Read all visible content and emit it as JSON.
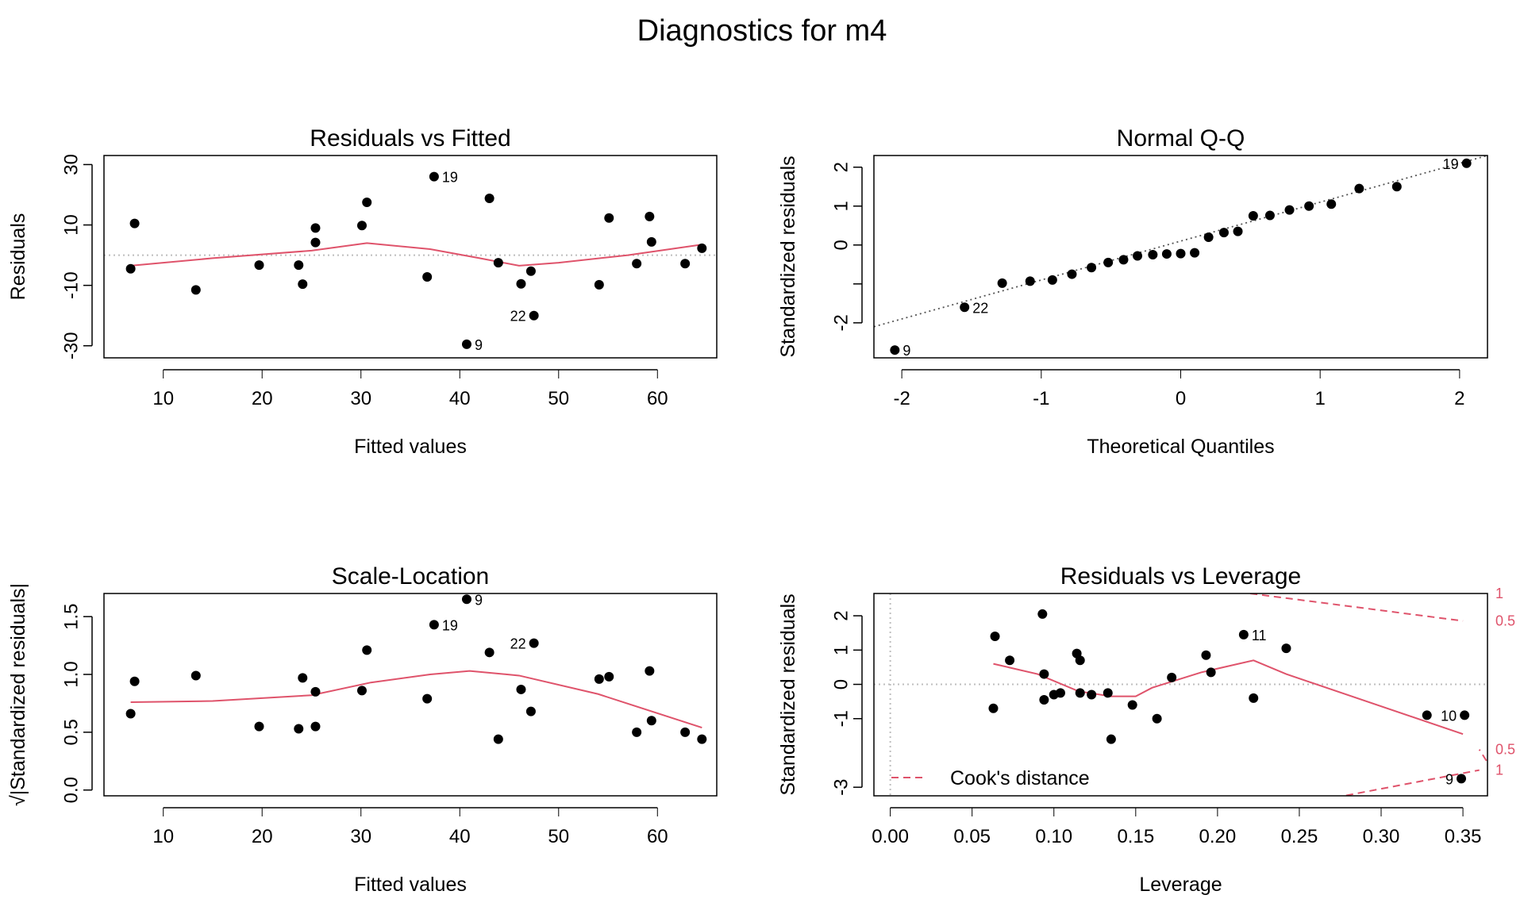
{
  "main_title": "Diagnostics for m4",
  "colors": {
    "points": "#000000",
    "smooth": "#DF536B",
    "ref_line": "#BEBEBE",
    "qq_line": "#555555"
  },
  "chart_data": [
    {
      "type": "scatter",
      "title": "Residuals vs Fitted",
      "xlabel": "Fitted values",
      "ylabel": "Residuals",
      "xlim": [
        4,
        66
      ],
      "ylim": [
        -34,
        33
      ],
      "xticks": [
        10,
        20,
        30,
        40,
        50,
        60
      ],
      "yticks": [
        -30,
        -10,
        10,
        30
      ],
      "ref_h": 0,
      "points": [
        [
          6.7,
          -4.5
        ],
        [
          7.1,
          10.5
        ],
        [
          13.3,
          -11.5
        ],
        [
          19.7,
          -3.3
        ],
        [
          23.7,
          -3.3
        ],
        [
          24.1,
          -9.6
        ],
        [
          25.4,
          4.2
        ],
        [
          25.4,
          9.0
        ],
        [
          30.1,
          9.8
        ],
        [
          30.6,
          17.5
        ],
        [
          36.7,
          -7.2
        ],
        [
          37.4,
          26.0
        ],
        [
          40.7,
          -29.5
        ],
        [
          43.0,
          18.8
        ],
        [
          43.9,
          -2.5
        ],
        [
          46.2,
          -9.5
        ],
        [
          47.2,
          -5.3
        ],
        [
          47.5,
          -20.0
        ],
        [
          54.1,
          -9.8
        ],
        [
          55.1,
          12.3
        ],
        [
          57.9,
          -2.8
        ],
        [
          59.2,
          12.8
        ],
        [
          59.4,
          4.4
        ],
        [
          62.8,
          -2.8
        ],
        [
          64.5,
          2.3
        ]
      ],
      "smooth": [
        [
          6.7,
          -3.5
        ],
        [
          15,
          -1
        ],
        [
          25,
          1.5
        ],
        [
          30.6,
          4.0
        ],
        [
          37,
          2
        ],
        [
          42,
          -1
        ],
        [
          46,
          -3.5
        ],
        [
          50,
          -2.5
        ],
        [
          57,
          0
        ],
        [
          64.5,
          3.5
        ]
      ],
      "labels": [
        {
          "x": 37.4,
          "y": 26.0,
          "text": "19",
          "side": "right"
        },
        {
          "x": 40.7,
          "y": -29.5,
          "text": "9",
          "side": "right"
        },
        {
          "x": 47.5,
          "y": -20.0,
          "text": "22",
          "side": "left"
        }
      ]
    },
    {
      "type": "scatter",
      "title": "Normal Q-Q",
      "xlabel": "Theoretical Quantiles",
      "ylabel": "Standardized residuals",
      "xlim": [
        -2.2,
        2.2
      ],
      "ylim": [
        -2.9,
        2.3
      ],
      "xticks": [
        -2,
        -1,
        0,
        1,
        2
      ],
      "yticks": [
        -2,
        -1,
        0,
        1,
        2
      ],
      "ytick_labels": [
        "-2",
        "",
        "0",
        "1",
        "2"
      ],
      "ref_line": [
        [
          -2.2,
          -2.1
        ],
        [
          2.2,
          2.3
        ]
      ],
      "points": [
        [
          -2.05,
          -2.7
        ],
        [
          -1.55,
          -1.6
        ],
        [
          -1.28,
          -0.98
        ],
        [
          -1.08,
          -0.93
        ],
        [
          -0.92,
          -0.9
        ],
        [
          -0.78,
          -0.75
        ],
        [
          -0.64,
          -0.58
        ],
        [
          -0.52,
          -0.45
        ],
        [
          -0.41,
          -0.38
        ],
        [
          -0.31,
          -0.28
        ],
        [
          -0.2,
          -0.25
        ],
        [
          -0.1,
          -0.23
        ],
        [
          0.0,
          -0.22
        ],
        [
          0.1,
          -0.2
        ],
        [
          0.2,
          0.2
        ],
        [
          0.31,
          0.32
        ],
        [
          0.41,
          0.35
        ],
        [
          0.52,
          0.75
        ],
        [
          0.64,
          0.76
        ],
        [
          0.78,
          0.9
        ],
        [
          0.92,
          1.0
        ],
        [
          1.08,
          1.05
        ],
        [
          1.28,
          1.45
        ],
        [
          1.55,
          1.5
        ],
        [
          2.05,
          2.1
        ]
      ],
      "labels": [
        {
          "x": 2.05,
          "y": 2.1,
          "text": "19",
          "side": "left"
        },
        {
          "x": -1.55,
          "y": -1.6,
          "text": "22",
          "side": "right"
        },
        {
          "x": -2.05,
          "y": -2.7,
          "text": "9",
          "side": "right"
        }
      ]
    },
    {
      "type": "scatter",
      "title": "Scale-Location",
      "xlabel": "Fitted values",
      "ylabel": "√|Standardized residuals|",
      "xlim": [
        4,
        66
      ],
      "ylim": [
        -0.05,
        1.7
      ],
      "xticks": [
        10,
        20,
        30,
        40,
        50,
        60
      ],
      "yticks": [
        0.0,
        0.5,
        1.0,
        1.5
      ],
      "ytick_labels": [
        "0.0",
        "0.5",
        "1.0",
        "1.5"
      ],
      "points": [
        [
          6.7,
          0.66
        ],
        [
          7.1,
          0.94
        ],
        [
          13.3,
          0.99
        ],
        [
          19.7,
          0.55
        ],
        [
          23.7,
          0.53
        ],
        [
          24.1,
          0.97
        ],
        [
          25.4,
          0.55
        ],
        [
          25.4,
          0.85
        ],
        [
          30.1,
          0.86
        ],
        [
          30.6,
          1.21
        ],
        [
          36.7,
          0.79
        ],
        [
          37.4,
          1.43
        ],
        [
          40.7,
          1.65
        ],
        [
          43.0,
          1.19
        ],
        [
          43.9,
          0.44
        ],
        [
          46.2,
          0.87
        ],
        [
          47.2,
          0.68
        ],
        [
          47.5,
          1.27
        ],
        [
          54.1,
          0.96
        ],
        [
          55.1,
          0.98
        ],
        [
          57.9,
          0.5
        ],
        [
          59.2,
          1.03
        ],
        [
          59.4,
          0.6
        ],
        [
          62.8,
          0.5
        ],
        [
          64.5,
          0.44
        ]
      ],
      "smooth": [
        [
          6.7,
          0.76
        ],
        [
          15,
          0.77
        ],
        [
          25,
          0.82
        ],
        [
          31,
          0.93
        ],
        [
          37,
          1.0
        ],
        [
          41,
          1.03
        ],
        [
          46,
          0.99
        ],
        [
          54,
          0.83
        ],
        [
          64.5,
          0.54
        ]
      ],
      "labels": [
        {
          "x": 37.4,
          "y": 1.43,
          "text": "19",
          "side": "right"
        },
        {
          "x": 40.7,
          "y": 1.65,
          "text": "9",
          "side": "right"
        },
        {
          "x": 47.5,
          "y": 1.27,
          "text": "22",
          "side": "left"
        }
      ]
    },
    {
      "type": "scatter",
      "title": "Residuals vs Leverage",
      "xlabel": "Leverage",
      "ylabel": "Standardized residuals",
      "xlim": [
        -0.01,
        0.365
      ],
      "ylim": [
        -3.25,
        2.65
      ],
      "xticks": [
        0.0,
        0.05,
        0.1,
        0.15,
        0.2,
        0.25,
        0.3,
        0.35
      ],
      "xtick_labels": [
        "0.00",
        "0.05",
        "0.10",
        "0.15",
        "0.20",
        "0.25",
        "0.30",
        "0.35"
      ],
      "yticks": [
        -3,
        -1,
        0,
        1,
        2
      ],
      "ytick_labels": [
        "-3",
        "-1",
        "0",
        "1",
        "2"
      ],
      "ref_h": 0,
      "ref_v": 0,
      "points": [
        [
          0.063,
          -0.7
        ],
        [
          0.064,
          1.4
        ],
        [
          0.073,
          0.7
        ],
        [
          0.093,
          2.05
        ],
        [
          0.094,
          0.3
        ],
        [
          0.094,
          -0.45
        ],
        [
          0.1,
          -0.3
        ],
        [
          0.104,
          -0.25
        ],
        [
          0.114,
          0.9
        ],
        [
          0.116,
          0.7
        ],
        [
          0.116,
          -0.25
        ],
        [
          0.123,
          -0.3
        ],
        [
          0.133,
          -0.25
        ],
        [
          0.135,
          -1.6
        ],
        [
          0.148,
          -0.6
        ],
        [
          0.163,
          -1.0
        ],
        [
          0.172,
          0.2
        ],
        [
          0.193,
          0.85
        ],
        [
          0.196,
          0.35
        ],
        [
          0.216,
          1.45
        ],
        [
          0.222,
          -0.4
        ],
        [
          0.242,
          1.05
        ],
        [
          0.328,
          -0.9
        ],
        [
          0.349,
          -2.75
        ],
        [
          0.351,
          -0.9
        ]
      ],
      "smooth": [
        [
          0.063,
          0.6
        ],
        [
          0.09,
          0.3
        ],
        [
          0.115,
          -0.2
        ],
        [
          0.135,
          -0.35
        ],
        [
          0.15,
          -0.35
        ],
        [
          0.16,
          -0.1
        ],
        [
          0.19,
          0.35
        ],
        [
          0.222,
          0.7
        ],
        [
          0.242,
          0.3
        ],
        [
          0.35,
          -1.45
        ]
      ],
      "labels": [
        {
          "x": 0.216,
          "y": 1.45,
          "text": "11",
          "side": "right"
        },
        {
          "x": 0.351,
          "y": -0.9,
          "text": "10",
          "side": "left"
        },
        {
          "x": 0.349,
          "y": -2.75,
          "text": "9",
          "side": "left"
        }
      ],
      "cooks_curves": [
        {
          "level": 0.5,
          "upper": [
            [
              0.22,
              2.65
            ],
            [
              0.35,
              1.85
            ]
          ],
          "lower": [
            [
              0.38,
              -3.4
            ],
            [
              0.36,
              -1.9
            ]
          ]
        },
        {
          "level": 1,
          "upper": [
            [
              0.36,
              2.65
            ]
          ],
          "lower": [
            [
              0.25,
              -3.5
            ],
            [
              0.36,
              -2.5
            ]
          ]
        }
      ],
      "right_labels": [
        {
          "y": 2.65,
          "text": "1"
        },
        {
          "y": 1.85,
          "text": "0.5"
        },
        {
          "y": -1.9,
          "text": "0.5"
        },
        {
          "y": -2.5,
          "text": "1"
        }
      ],
      "legend": {
        "text": "Cook's distance",
        "position": "bottom-left"
      }
    }
  ]
}
